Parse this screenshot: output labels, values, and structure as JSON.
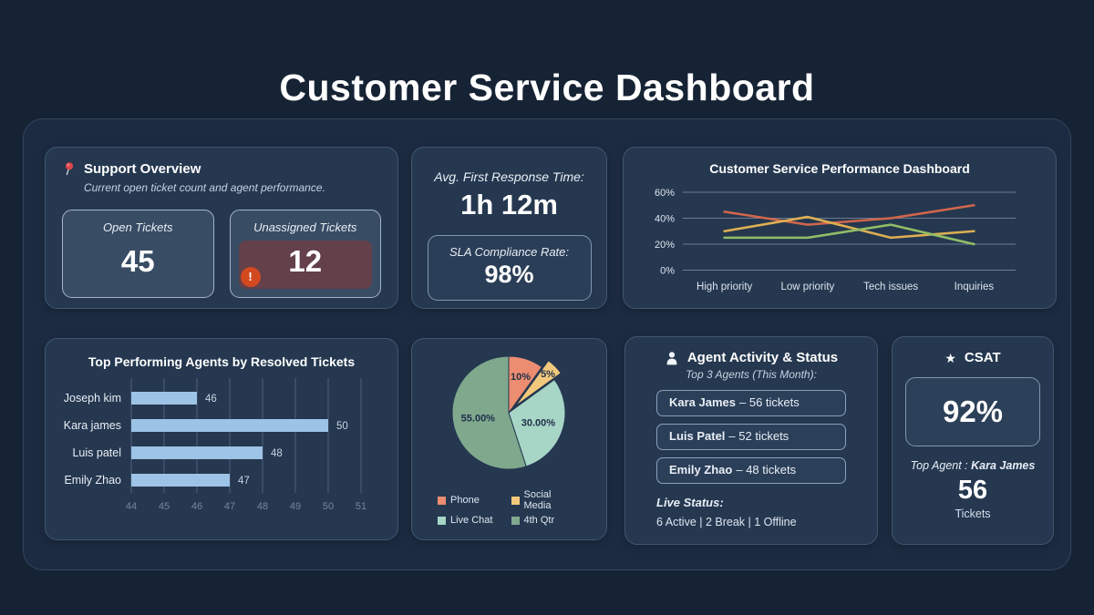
{
  "page": {
    "title": "Customer Service Dashboard"
  },
  "colors": {
    "background": "#162334",
    "panel": "#253850",
    "bar_blue": "#9DC3E6",
    "alert_red": "#D3491F",
    "alert_background": "#63404A"
  },
  "support_overview": {
    "title": "Support Overview",
    "subtitle": "Current open ticket count and agent performance.",
    "open_tickets": {
      "label": "Open Tickets",
      "value": "45"
    },
    "unassigned_tickets": {
      "label": "Unassigned Tickets",
      "value": "12",
      "warning": "!"
    }
  },
  "response_time": {
    "label": "Avg. First Response Time:",
    "value": "1h 12m",
    "sla_label": "SLA Compliance Rate:",
    "sla_value": "98%"
  },
  "agent_activity": {
    "title": "Agent Activity & Status",
    "subtitle": "Top 3 Agents (This Month):",
    "agents": [
      {
        "name": "Kara James",
        "detail": "– 56 tickets"
      },
      {
        "name": "Luis Patel",
        "detail": "– 52 tickets"
      },
      {
        "name": "Emily Zhao",
        "detail": "– 48 tickets"
      }
    ],
    "live_status_label": "Live Status:",
    "live_status": "6 Active | 2 Break | 1 Offline"
  },
  "csat": {
    "title": "CSAT",
    "score": "92%",
    "top_agent_label": "Top Agent :",
    "top_agent_name": "Kara James",
    "tickets_value": "56",
    "tickets_label": "Tickets"
  },
  "chart_data": [
    {
      "type": "line",
      "title": "Customer Service Performance Dashboard",
      "categories": [
        "High priority",
        "Low priority",
        "Tech issues",
        "Inquiries"
      ],
      "series": [
        {
          "name": "series-red",
          "color": "#D2664B",
          "values": [
            45,
            35,
            40,
            50
          ]
        },
        {
          "name": "series-gold",
          "color": "#DDAF52",
          "values": [
            30,
            41,
            25,
            30
          ]
        },
        {
          "name": "series-green",
          "color": "#92BE66",
          "values": [
            25,
            25,
            35,
            20
          ]
        }
      ],
      "ylim": [
        0,
        60
      ],
      "yticks": [
        0,
        20,
        40,
        60
      ],
      "ytick_format": "%",
      "grid": true,
      "legend": "none"
    },
    {
      "type": "bar",
      "orientation": "horizontal",
      "title": "Top Performing Agents by Resolved Tickets",
      "categories": [
        "Joseph kim",
        "Kara james",
        "Luis patel",
        "Emily Zhao"
      ],
      "values": [
        46,
        50,
        48,
        47
      ],
      "xlim": [
        44,
        51
      ],
      "xticks": [
        44,
        45,
        46,
        47,
        48,
        49,
        50,
        51
      ],
      "bar_color": "#9DC3E6",
      "grid": true,
      "legend": "none"
    },
    {
      "type": "pie",
      "start_angle_deg_from_top": 0,
      "direction": "clockwise",
      "slices": [
        {
          "label": "Phone",
          "value": 10,
          "display": "10%",
          "color": "#EC8C71",
          "explode": 0
        },
        {
          "label": "Social Media",
          "value": 5,
          "display": "5%",
          "color": "#F2C97C",
          "explode": 10
        },
        {
          "label": "Live Chat",
          "value": 30,
          "display": "30.00%",
          "color": "#A7D5C6",
          "explode": 0
        },
        {
          "label": "4th Qtr",
          "value": 55,
          "display": "55.00%",
          "color": "#7FA88D",
          "explode": 0
        }
      ],
      "legend_position": "bottom"
    }
  ]
}
